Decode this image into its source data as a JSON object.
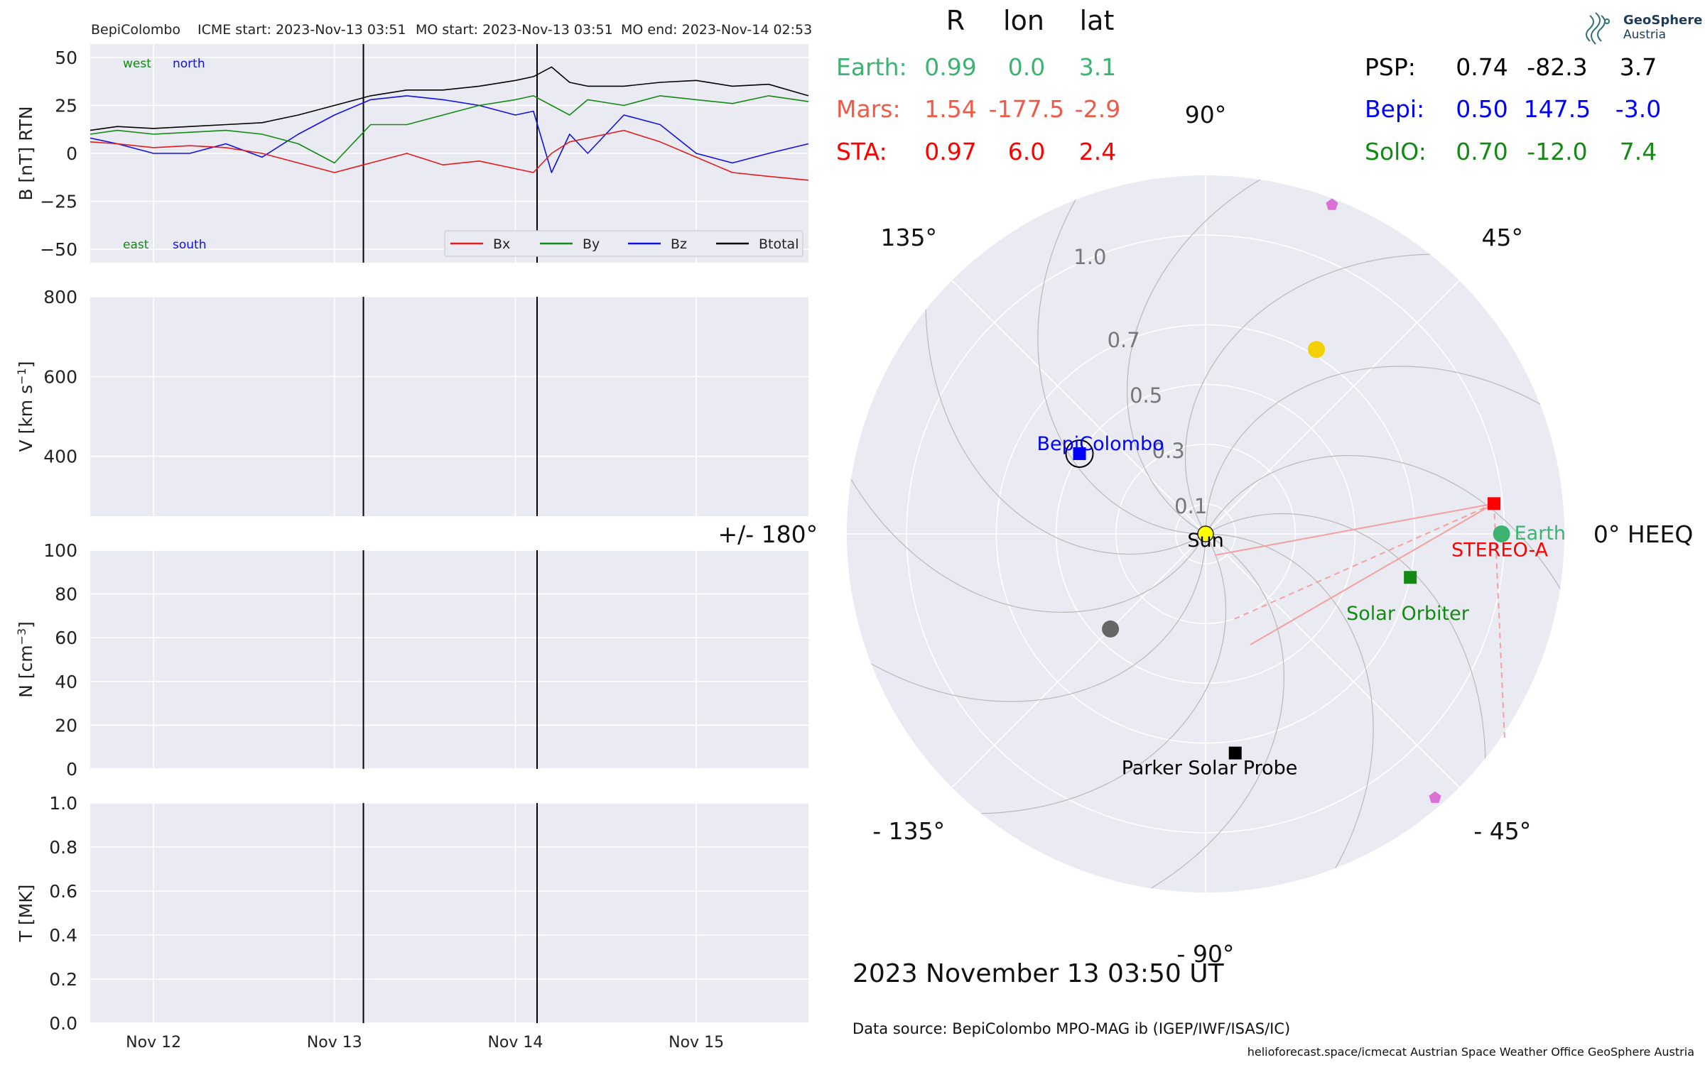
{
  "header": {
    "spacecraft": "BepiColombo",
    "icme_start": "ICME start: 2023-Nov-13 03:51",
    "mo_start": "MO start: 2023-Nov-13 03:51",
    "mo_end": "MO end: 2023-Nov-14 02:53"
  },
  "logo": {
    "line1": "GeoSphere",
    "line2": "Austria"
  },
  "colors": {
    "bx": "#e41a1c",
    "by": "#138a13",
    "bz": "#1010e8",
    "btotal": "#000000",
    "earth": "#3cb371",
    "mars": "#f05a46",
    "sta": "#ff0000",
    "psp": "#000000",
    "bepi": "#0000ff",
    "solo": "#138a13",
    "panel_bg": "#eaeaf2",
    "grid": "#ffffff"
  },
  "positions_table": {
    "headers": [
      "R",
      "lon",
      "lat"
    ],
    "left_rows": [
      {
        "name": "Earth:",
        "R": "0.99",
        "lon": "0.0",
        "lat": "3.1",
        "color": "#3cb371"
      },
      {
        "name": "Mars:",
        "R": "1.54",
        "lon": "-177.5",
        "lat": "-2.9",
        "color": "#f05a46"
      },
      {
        "name": "STA:",
        "R": "0.97",
        "lon": "6.0",
        "lat": "2.4",
        "color": "#ff0000"
      }
    ],
    "right_rows": [
      {
        "name": "PSP:",
        "R": "0.74",
        "lon": "-82.3",
        "lat": "3.7",
        "color": "#000000"
      },
      {
        "name": "Bepi:",
        "R": "0.50",
        "lon": "147.5",
        "lat": "-3.0",
        "color": "#0000ff"
      },
      {
        "name": "SolO:",
        "R": "0.70",
        "lon": "-12.0",
        "lat": "7.4",
        "color": "#138a13"
      }
    ]
  },
  "footer": {
    "timestamp": "2023 November 13  03:50 UT",
    "data_source": "Data source: BepiColombo MPO-MAG ib (IGEP/IWF/ISAS/IC)",
    "credits": "helioforecast.space/icmecat   Austrian Space Weather Office   GeoSphere Austria"
  },
  "chart_data": [
    {
      "type": "line",
      "ylabel": "B [nT] RTN",
      "ylim": [
        -57,
        57
      ],
      "yticks": [
        50,
        25,
        0,
        -25,
        -50
      ],
      "ytick_labels": [
        "50",
        "25",
        "0",
        "−25",
        "−50"
      ],
      "xlim_days": [
        11.65,
        15.62
      ],
      "x_ticks": [
        12,
        13,
        14,
        15
      ],
      "x_tick_labels": [
        "Nov 12",
        "Nov 13",
        "Nov 14",
        "Nov 15"
      ],
      "event_lines": [
        13.16,
        14.12
      ],
      "corner_labels": [
        {
          "text": "west",
          "color": "#138a13",
          "pos": "top-left"
        },
        {
          "text": "north",
          "color": "#1010e8",
          "pos": "top-left"
        },
        {
          "text": "east",
          "color": "#138a13",
          "pos": "bottom-left"
        },
        {
          "text": "south",
          "color": "#1010e8",
          "pos": "bottom-left"
        }
      ],
      "legend": [
        "Bx",
        "By",
        "Bz",
        "Btotal"
      ],
      "x_days": [
        11.65,
        11.8,
        12.0,
        12.2,
        12.4,
        12.6,
        12.8,
        13.0,
        13.2,
        13.4,
        13.6,
        13.8,
        14.0,
        14.1,
        14.2,
        14.3,
        14.4,
        14.6,
        14.8,
        15.0,
        15.2,
        15.4,
        15.62
      ],
      "series": [
        {
          "name": "Bx",
          "color": "#e41a1c",
          "values": [
            6,
            5,
            3,
            4,
            3,
            0,
            -5,
            -10,
            -5,
            0,
            -6,
            -4,
            -8,
            -10,
            0,
            6,
            8,
            12,
            6,
            -2,
            -10,
            -12,
            -14
          ]
        },
        {
          "name": "By",
          "color": "#138a13",
          "values": [
            10,
            12,
            10,
            11,
            12,
            10,
            5,
            -5,
            15,
            15,
            20,
            25,
            28,
            30,
            25,
            20,
            28,
            25,
            30,
            28,
            26,
            30,
            27
          ]
        },
        {
          "name": "Bz",
          "color": "#1010e8",
          "values": [
            8,
            5,
            0,
            0,
            5,
            -2,
            10,
            20,
            28,
            30,
            28,
            25,
            20,
            22,
            -10,
            10,
            0,
            20,
            15,
            0,
            -5,
            0,
            5
          ]
        },
        {
          "name": "Btotal",
          "color": "#000000",
          "values": [
            12,
            14,
            13,
            14,
            15,
            16,
            20,
            25,
            30,
            33,
            33,
            35,
            38,
            40,
            45,
            37,
            35,
            35,
            37,
            38,
            35,
            36,
            30
          ]
        }
      ]
    },
    {
      "type": "line",
      "ylabel": "V [km s",
      "ylabel_sup": "−1",
      "ylabel_end": "]",
      "ylim": [
        250,
        800
      ],
      "yticks": [
        800,
        600,
        400
      ],
      "ytick_labels": [
        "800",
        "600",
        "400"
      ],
      "series": []
    },
    {
      "type": "line",
      "ylabel": "N [cm",
      "ylabel_sup": "−3",
      "ylabel_end": "]",
      "ylim": [
        0,
        100
      ],
      "yticks": [
        100,
        80,
        60,
        40,
        20,
        0
      ],
      "ytick_labels": [
        "100",
        "80",
        "60",
        "40",
        "20",
        "0"
      ],
      "series": []
    },
    {
      "type": "line",
      "ylabel": "T [MK]",
      "ylim": [
        0,
        1
      ],
      "yticks": [
        1.0,
        0.8,
        0.6,
        0.4,
        0.2,
        0.0
      ],
      "ytick_labels": [
        "1.0",
        "0.8",
        "0.6",
        "0.4",
        "0.2",
        "0.0"
      ],
      "series": []
    },
    {
      "type": "scatter",
      "projection": "polar",
      "r_max": 1.2,
      "r_rings": [
        0.1,
        0.3,
        0.5,
        0.7,
        1.0
      ],
      "r_ring_labels": [
        "0.1",
        "0.3",
        "0.5",
        "0.7",
        "1.0"
      ],
      "angle_labels": [
        {
          "deg": 0,
          "text": "0° HEEQ"
        },
        {
          "deg": 45,
          "text": "45°"
        },
        {
          "deg": 90,
          "text": "90°"
        },
        {
          "deg": 135,
          "text": "135°"
        },
        {
          "deg": 180,
          "text": "+/- 180°"
        },
        {
          "deg": 225,
          "text": "- 135°"
        },
        {
          "deg": 270,
          "text": "- 90°"
        },
        {
          "deg": 315,
          "text": "- 45°"
        }
      ],
      "objects": [
        {
          "name": "Sun",
          "label": "Sun",
          "r": 0.0,
          "lon": 0.0,
          "marker": "circle",
          "color": "#ffff00",
          "label_color": "#000000"
        },
        {
          "name": "Earth",
          "label": "Earth",
          "r": 0.99,
          "lon": 0.0,
          "marker": "circle",
          "color": "#3cb371",
          "label_color": "#3cb371"
        },
        {
          "name": "STEREO-A",
          "label": "STEREO-A",
          "r": 0.97,
          "lon": 6.0,
          "marker": "square",
          "color": "#ff0000",
          "label_color": "#ff0000"
        },
        {
          "name": "Solar Orbiter",
          "label": "Solar Orbiter",
          "r": 0.7,
          "lon": -12.0,
          "marker": "square",
          "color": "#138a13",
          "label_color": "#138a13"
        },
        {
          "name": "Parker Solar Probe",
          "label": "Parker Solar Probe",
          "r": 0.74,
          "lon": -82.3,
          "marker": "square",
          "color": "#000000",
          "label_color": "#000000"
        },
        {
          "name": "BepiColombo",
          "label": "BepiColombo",
          "r": 0.5,
          "lon": 147.5,
          "marker": "square",
          "color": "#0000ff",
          "label_color": "#0000ff",
          "ring": true
        },
        {
          "name": "Venus",
          "label": "",
          "r": 0.72,
          "lon": 59.0,
          "marker": "circle",
          "color": "#f5d000",
          "label_color": ""
        },
        {
          "name": "Mercury",
          "label": "",
          "r": 0.45,
          "lon": -135.0,
          "marker": "circle",
          "color": "#666666",
          "label_color": ""
        },
        {
          "name": "Jupiter",
          "label": "",
          "r": 1.18,
          "lon": 69.0,
          "marker": "pentagon",
          "color": "#da70d6",
          "label_color": ""
        },
        {
          "name": "Saturn",
          "label": "",
          "r": 1.17,
          "lon": -49.0,
          "marker": "pentagon",
          "color": "#da70d6",
          "label_color": ""
        }
      ]
    }
  ]
}
